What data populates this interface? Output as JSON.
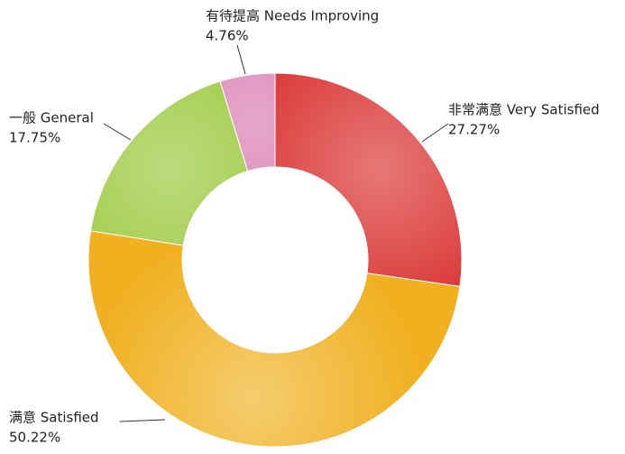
{
  "chart_data": {
    "type": "pie",
    "donut": true,
    "categories": [
      "非常满意 Very Satisfied",
      "满意 Satisfied",
      "一般 General",
      "有待提高 Needs Improving"
    ],
    "values": [
      27.27,
      50.22,
      17.75,
      4.76
    ],
    "value_labels": [
      "27.27%",
      "50.22%",
      "17.75%",
      "4.76%"
    ],
    "colors": [
      "#d8302e",
      "#f0b020",
      "#98c838",
      "#d878b0"
    ]
  }
}
